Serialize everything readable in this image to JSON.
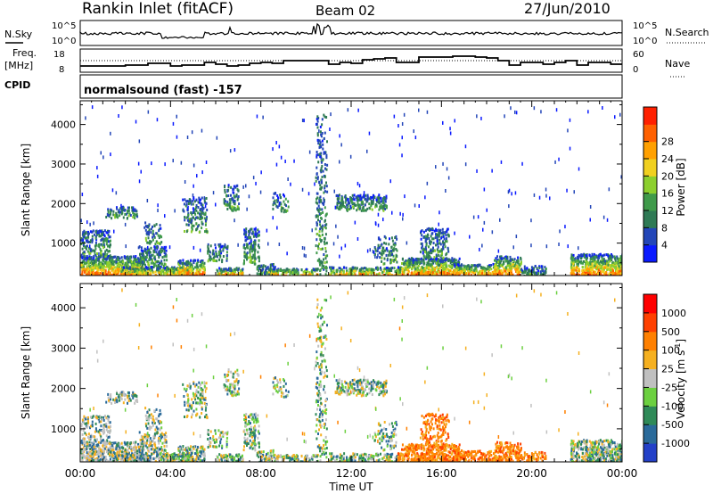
{
  "header": {
    "title": "Rankin Inlet (fitACF)",
    "beam": "Beam 02",
    "date": "27/Jun/2010"
  },
  "top_panels": {
    "nsky_label": "N.Sky",
    "nsky_ticks": [
      "10^5",
      "10^0"
    ],
    "nsearch_label": "N.Search",
    "nsearch_ticks": [
      "10^5",
      "10^0"
    ],
    "freq_label": "Freq.",
    "freq_unit": "[MHz]",
    "freq_ticks": [
      "18",
      "8"
    ],
    "nave_label": "Nave",
    "nave_ticks": [
      "60",
      "0"
    ],
    "cpid_label": "CPID",
    "cpid_text": "normalsound (fast) -157"
  },
  "chart_data": [
    {
      "type": "heatmap",
      "name": "power-panel",
      "ylabel": "Slant Range [km]",
      "xlabel": "",
      "x_ticks": [
        "00:00",
        "04:00",
        "08:00",
        "12:00",
        "16:00",
        "20:00",
        "00:00"
      ],
      "x_range_hours": [
        0,
        24
      ],
      "y_ticks": [
        1000,
        2000,
        3000,
        4000
      ],
      "ylim": [
        180,
        4600
      ],
      "colorbar": {
        "label": "Power [dB]",
        "ticks": [
          "4",
          "8",
          "12",
          "16",
          "20",
          "24",
          "28"
        ],
        "range": [
          0,
          30
        ],
        "colors": [
          "#0a1aff",
          "#2346b8",
          "#2f7a55",
          "#3f9a4a",
          "#8ccf2e",
          "#f0d020",
          "#ffa000",
          "#ff6000",
          "#ff2000"
        ]
      }
    },
    {
      "type": "heatmap",
      "name": "velocity-panel",
      "ylabel": "Slant Range [km]",
      "xlabel": "Time UT",
      "x_ticks": [
        "00:00",
        "04:00",
        "08:00",
        "12:00",
        "16:00",
        "20:00",
        "00:00"
      ],
      "x_range_hours": [
        0,
        24
      ],
      "y_ticks": [
        1000,
        2000,
        3000,
        4000
      ],
      "ylim": [
        180,
        4600
      ],
      "colorbar": {
        "label": "Velocity [m s-1]",
        "label_main": "Velocity",
        "label_unit": "[m s",
        "label_sup": "-1",
        "label_close": "]",
        "ticks": [
          "1000",
          "500",
          "100",
          "25",
          "-25",
          "-100",
          "-500",
          "-1000"
        ],
        "colors": [
          "#2340c8",
          "#2a6a9a",
          "#2f8a58",
          "#6cd040",
          "#c0c0c0",
          "#f5b020",
          "#ff8000",
          "#ff4000",
          "#ff0000"
        ]
      }
    }
  ]
}
